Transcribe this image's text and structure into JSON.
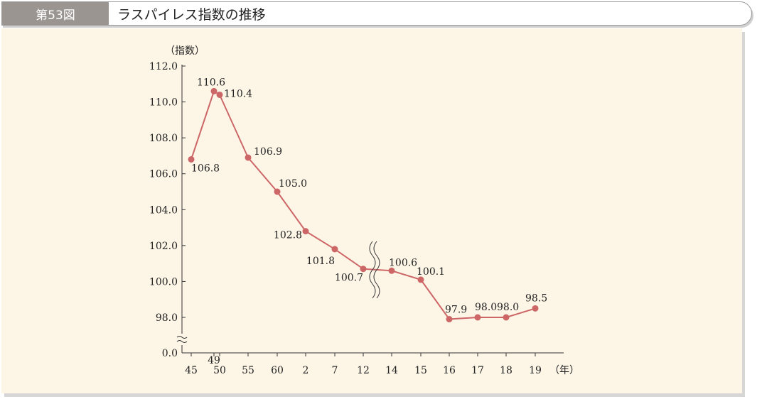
{
  "header": {
    "figure_number": "第53図",
    "title": "ラスパイレス指数の推移"
  },
  "colors": {
    "series": "#cd6767",
    "axis": "#333333",
    "panel_bg": "#fdf6e7",
    "label_bg": "#9a9590"
  },
  "chart_data": {
    "type": "line",
    "title": "ラスパイレス指数の推移",
    "ylabel": "（指数）",
    "xunit": "（年）",
    "ylim": [
      98.0,
      112.0
    ],
    "y_ticks": [
      "0.0",
      "98.0",
      "100.0",
      "102.0",
      "104.0",
      "106.0",
      "108.0",
      "110.0",
      "112.0"
    ],
    "x_tick_labels": [
      "45",
      "50",
      "55",
      "60",
      "2",
      "7",
      "12",
      "14",
      "15",
      "16",
      "17",
      "18",
      "19"
    ],
    "x_extra_label": "49",
    "y_axis_break": true,
    "x_axis_break_between": [
      "12",
      "14"
    ],
    "series": [
      {
        "points": [
          {
            "x": "45",
            "y": 106.8,
            "label": "106.8"
          },
          {
            "x": "49",
            "y": 110.6,
            "label": "110.6"
          },
          {
            "x": "50",
            "y": 110.4,
            "label": "110.4"
          },
          {
            "x": "55",
            "y": 106.9,
            "label": "106.9"
          },
          {
            "x": "60",
            "y": 105.0,
            "label": "105.0"
          },
          {
            "x": "2",
            "y": 102.8,
            "label": "102.8"
          },
          {
            "x": "7",
            "y": 101.8,
            "label": "101.8"
          },
          {
            "x": "12",
            "y": 100.7,
            "label": "100.7"
          },
          {
            "x": "14",
            "y": 100.6,
            "label": "100.6"
          },
          {
            "x": "15",
            "y": 100.1,
            "label": "100.1"
          },
          {
            "x": "16",
            "y": 97.9,
            "label": "97.9"
          },
          {
            "x": "17",
            "y": 98.0,
            "label": "98.0"
          },
          {
            "x": "18",
            "y": 98.0,
            "label": "98.0"
          },
          {
            "x": "19",
            "y": 98.5,
            "label": "98.5"
          }
        ]
      }
    ]
  }
}
